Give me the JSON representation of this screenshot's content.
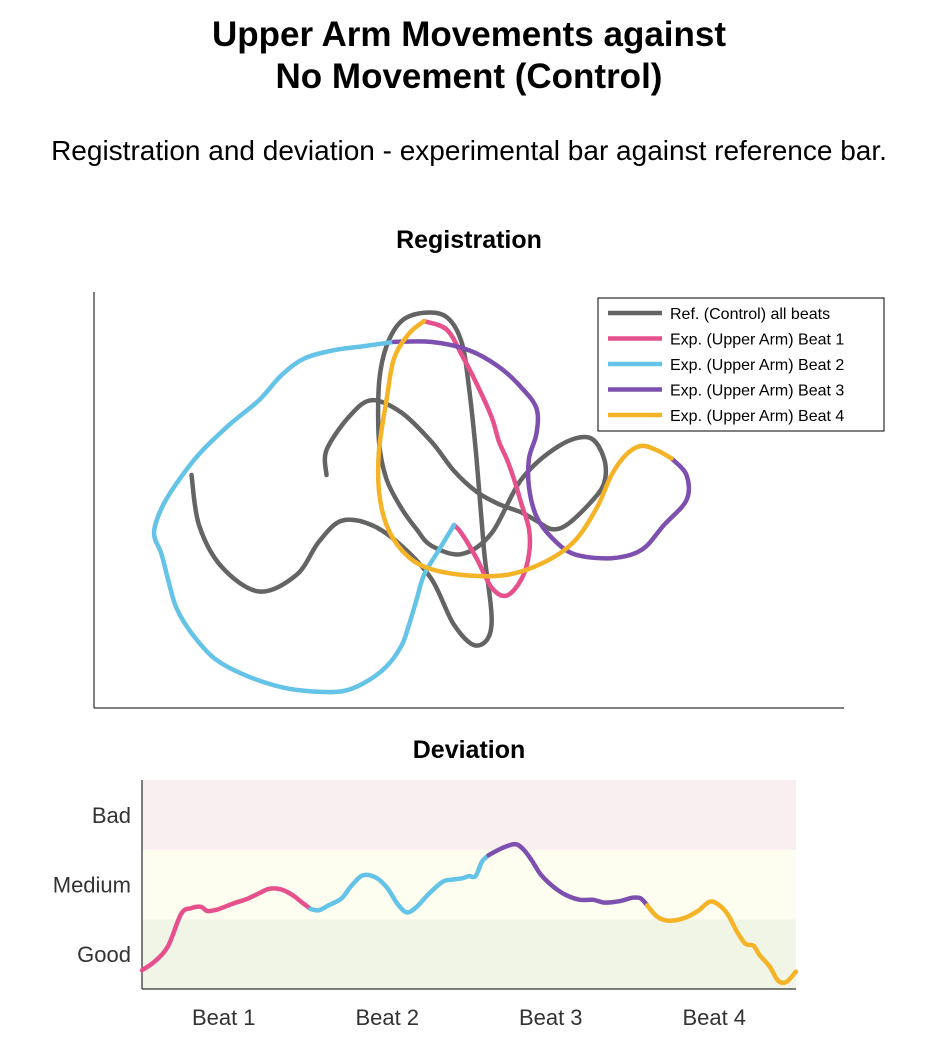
{
  "title_line1": "Upper Arm Movements against",
  "title_line2": "No Movement (Control)",
  "subtitle": "Registration and deviation - experimental bar against reference bar.",
  "chart_data": [
    {
      "type": "line",
      "title": "Registration",
      "xlabel": "",
      "ylabel": "",
      "axes_ticks": false,
      "grid": false,
      "legend_position": "top-right",
      "series": [
        {
          "name": "Ref. (Control) all beats",
          "color": "#646464",
          "points": [
            [
              0.31,
              0.44
            ],
            [
              0.31,
              0.38
            ],
            [
              0.34,
              0.3
            ],
            [
              0.37,
              0.26
            ],
            [
              0.41,
              0.29
            ],
            [
              0.45,
              0.36
            ],
            [
              0.48,
              0.43
            ],
            [
              0.51,
              0.48
            ],
            [
              0.54,
              0.51
            ],
            [
              0.57,
              0.53
            ],
            [
              0.59,
              0.55
            ],
            [
              0.61,
              0.57
            ],
            [
              0.63,
              0.56
            ],
            [
              0.66,
              0.51
            ],
            [
              0.68,
              0.46
            ],
            [
              0.68,
              0.4
            ],
            [
              0.66,
              0.35
            ],
            [
              0.62,
              0.37
            ],
            [
              0.57,
              0.45
            ],
            [
              0.53,
              0.58
            ],
            [
              0.49,
              0.63
            ],
            [
              0.45,
              0.61
            ],
            [
              0.43,
              0.57
            ],
            [
              0.41,
              0.52
            ],
            [
              0.39,
              0.45
            ],
            [
              0.38,
              0.36
            ],
            [
              0.38,
              0.22
            ],
            [
              0.39,
              0.13
            ],
            [
              0.41,
              0.07
            ],
            [
              0.44,
              0.05
            ],
            [
              0.47,
              0.06
            ],
            [
              0.49,
              0.12
            ],
            [
              0.5,
              0.23
            ],
            [
              0.51,
              0.4
            ],
            [
              0.52,
              0.62
            ],
            [
              0.53,
              0.8
            ],
            [
              0.51,
              0.85
            ],
            [
              0.48,
              0.8
            ],
            [
              0.45,
              0.69
            ],
            [
              0.41,
              0.61
            ],
            [
              0.37,
              0.56
            ],
            [
              0.33,
              0.55
            ],
            [
              0.3,
              0.6
            ],
            [
              0.27,
              0.68
            ],
            [
              0.22,
              0.72
            ],
            [
              0.17,
              0.66
            ],
            [
              0.14,
              0.56
            ],
            [
              0.13,
              0.44
            ]
          ]
        },
        {
          "name": "Exp. (Upper Arm) Beat 1",
          "color": "#E6508C",
          "points": [
            [
              0.44,
              0.07
            ],
            [
              0.47,
              0.09
            ],
            [
              0.49,
              0.15
            ],
            [
              0.51,
              0.22
            ],
            [
              0.53,
              0.3
            ],
            [
              0.54,
              0.36
            ],
            [
              0.55,
              0.4
            ],
            [
              0.56,
              0.45
            ],
            [
              0.57,
              0.51
            ],
            [
              0.58,
              0.57
            ],
            [
              0.58,
              0.63
            ],
            [
              0.57,
              0.69
            ],
            [
              0.55,
              0.73
            ],
            [
              0.53,
              0.71
            ],
            [
              0.51,
              0.64
            ],
            [
              0.49,
              0.58
            ],
            [
              0.48,
              0.56
            ]
          ]
        },
        {
          "name": "Exp. (Upper Arm) Beat 2",
          "color": "#64C3E6",
          "points": [
            [
              0.48,
              0.56
            ],
            [
              0.46,
              0.62
            ],
            [
              0.44,
              0.68
            ],
            [
              0.43,
              0.74
            ],
            [
              0.42,
              0.8
            ],
            [
              0.41,
              0.85
            ],
            [
              0.39,
              0.9
            ],
            [
              0.36,
              0.94
            ],
            [
              0.33,
              0.96
            ],
            [
              0.29,
              0.96
            ],
            [
              0.25,
              0.95
            ],
            [
              0.2,
              0.92
            ],
            [
              0.16,
              0.88
            ],
            [
              0.13,
              0.82
            ],
            [
              0.11,
              0.76
            ],
            [
              0.1,
              0.7
            ],
            [
              0.09,
              0.63
            ],
            [
              0.08,
              0.58
            ],
            [
              0.09,
              0.52
            ],
            [
              0.11,
              0.46
            ],
            [
              0.14,
              0.39
            ],
            [
              0.18,
              0.32
            ],
            [
              0.22,
              0.26
            ],
            [
              0.25,
              0.2
            ],
            [
              0.28,
              0.16
            ],
            [
              0.32,
              0.14
            ],
            [
              0.36,
              0.13
            ],
            [
              0.4,
              0.12
            ]
          ]
        },
        {
          "name": "Exp. (Upper Arm) Beat 3",
          "color": "#7D50AF",
          "points": [
            [
              0.4,
              0.12
            ],
            [
              0.45,
              0.12
            ],
            [
              0.5,
              0.14
            ],
            [
              0.54,
              0.18
            ],
            [
              0.57,
              0.23
            ],
            [
              0.59,
              0.28
            ],
            [
              0.59,
              0.34
            ],
            [
              0.58,
              0.4
            ],
            [
              0.58,
              0.47
            ],
            [
              0.59,
              0.54
            ],
            [
              0.61,
              0.59
            ],
            [
              0.64,
              0.63
            ],
            [
              0.69,
              0.64
            ],
            [
              0.73,
              0.62
            ],
            [
              0.76,
              0.56
            ],
            [
              0.79,
              0.5
            ],
            [
              0.79,
              0.44
            ],
            [
              0.77,
              0.4
            ]
          ]
        },
        {
          "name": "Exp. (Upper Arm) Beat 4",
          "color": "#F5B428",
          "points": [
            [
              0.77,
              0.4
            ],
            [
              0.75,
              0.38
            ],
            [
              0.73,
              0.37
            ],
            [
              0.71,
              0.39
            ],
            [
              0.69,
              0.44
            ],
            [
              0.67,
              0.52
            ],
            [
              0.64,
              0.6
            ],
            [
              0.6,
              0.65
            ],
            [
              0.55,
              0.68
            ],
            [
              0.49,
              0.68
            ],
            [
              0.44,
              0.66
            ],
            [
              0.41,
              0.62
            ],
            [
              0.39,
              0.56
            ],
            [
              0.38,
              0.48
            ],
            [
              0.38,
              0.38
            ],
            [
              0.39,
              0.26
            ],
            [
              0.4,
              0.16
            ],
            [
              0.42,
              0.1
            ],
            [
              0.44,
              0.07
            ]
          ]
        }
      ]
    },
    {
      "type": "line",
      "title": "Deviation",
      "categories": [
        "Beat 1",
        "Beat 2",
        "Beat 3",
        "Beat 4"
      ],
      "yticklabels": [
        "Good",
        "Medium",
        "Bad"
      ],
      "bands": [
        {
          "label": "Good",
          "range": [
            0,
            1
          ],
          "color": "#F0F5E6"
        },
        {
          "label": "Medium",
          "range": [
            1,
            2
          ],
          "color": "#FDFDF0"
        },
        {
          "label": "Bad",
          "range": [
            2,
            3
          ],
          "color": "#F9EFF1"
        }
      ],
      "xlim": [
        0,
        4
      ],
      "ylim": [
        0,
        3
      ],
      "series": [
        {
          "name": "Beat 1",
          "color": "#E6508C",
          "points": [
            [
              0.0,
              0.27
            ],
            [
              0.08,
              0.4
            ],
            [
              0.16,
              0.62
            ],
            [
              0.24,
              1.08
            ],
            [
              0.3,
              1.16
            ],
            [
              0.36,
              1.18
            ],
            [
              0.4,
              1.12
            ],
            [
              0.46,
              1.14
            ],
            [
              0.55,
              1.22
            ],
            [
              0.65,
              1.3
            ],
            [
              0.72,
              1.38
            ],
            [
              0.78,
              1.44
            ],
            [
              0.85,
              1.43
            ],
            [
              0.92,
              1.35
            ],
            [
              0.98,
              1.24
            ],
            [
              1.03,
              1.15
            ]
          ]
        },
        {
          "name": "Beat 2",
          "color": "#64C3E6",
          "points": [
            [
              1.03,
              1.15
            ],
            [
              1.08,
              1.13
            ],
            [
              1.14,
              1.2
            ],
            [
              1.22,
              1.3
            ],
            [
              1.28,
              1.48
            ],
            [
              1.35,
              1.63
            ],
            [
              1.43,
              1.6
            ],
            [
              1.5,
              1.45
            ],
            [
              1.56,
              1.23
            ],
            [
              1.62,
              1.1
            ],
            [
              1.68,
              1.18
            ],
            [
              1.76,
              1.38
            ],
            [
              1.84,
              1.54
            ],
            [
              1.9,
              1.57
            ],
            [
              1.96,
              1.59
            ],
            [
              2.0,
              1.62
            ],
            [
              2.04,
              1.62
            ],
            [
              2.08,
              1.83
            ],
            [
              2.12,
              1.92
            ]
          ]
        },
        {
          "name": "Beat 3",
          "color": "#7D50AF",
          "points": [
            [
              2.12,
              1.92
            ],
            [
              2.2,
              2.02
            ],
            [
              2.28,
              2.08
            ],
            [
              2.33,
              2.01
            ],
            [
              2.38,
              1.86
            ],
            [
              2.44,
              1.64
            ],
            [
              2.52,
              1.46
            ],
            [
              2.6,
              1.34
            ],
            [
              2.68,
              1.28
            ],
            [
              2.76,
              1.28
            ],
            [
              2.83,
              1.24
            ],
            [
              2.92,
              1.26
            ],
            [
              3.0,
              1.31
            ],
            [
              3.05,
              1.3
            ],
            [
              3.09,
              1.2
            ]
          ]
        },
        {
          "name": "Beat 4",
          "color": "#F5B428",
          "points": [
            [
              3.09,
              1.2
            ],
            [
              3.15,
              1.04
            ],
            [
              3.22,
              0.98
            ],
            [
              3.32,
              1.02
            ],
            [
              3.4,
              1.12
            ],
            [
              3.47,
              1.25
            ],
            [
              3.52,
              1.22
            ],
            [
              3.58,
              1.08
            ],
            [
              3.64,
              0.82
            ],
            [
              3.69,
              0.65
            ],
            [
              3.74,
              0.62
            ],
            [
              3.78,
              0.48
            ],
            [
              3.84,
              0.32
            ],
            [
              3.89,
              0.12
            ],
            [
              3.94,
              0.1
            ],
            [
              4.0,
              0.25
            ]
          ]
        }
      ]
    }
  ]
}
